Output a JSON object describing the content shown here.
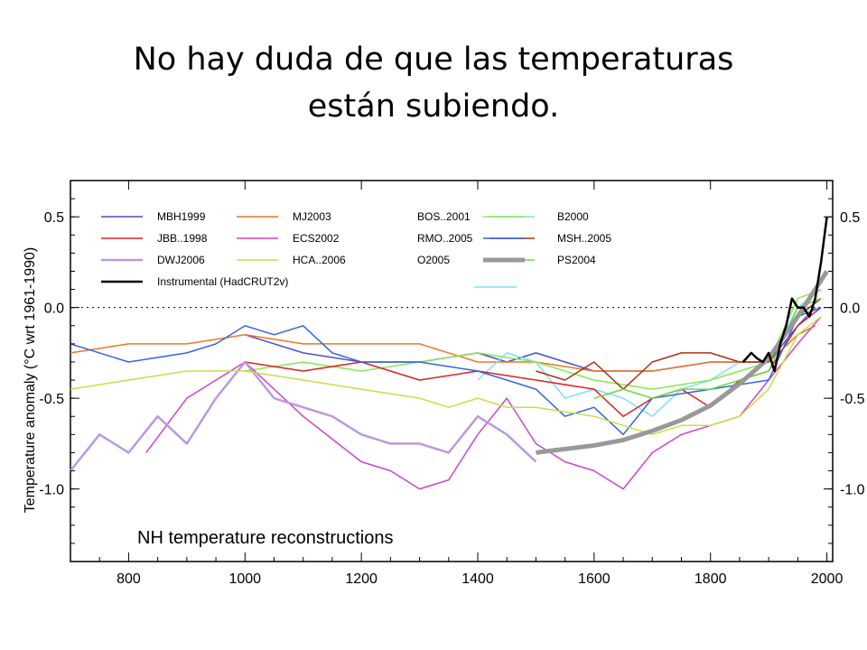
{
  "slide": {
    "title_line1": "No hay duda de que las temperaturas",
    "title_line2": "están subiendo."
  },
  "chart_data": {
    "type": "line",
    "panel_label": "NH temperature reconstructions",
    "xlabel": "",
    "ylabel": "Temperature anomaly (°C wrt 1961-1990)",
    "xlim": [
      700,
      2010
    ],
    "ylim": [
      -1.4,
      0.7
    ],
    "x_ticks": [
      800,
      1000,
      1200,
      1400,
      1600,
      1800,
      2000
    ],
    "y_ticks": [
      0.5,
      0.0,
      -0.5,
      -1.0
    ],
    "y_tick_labels": [
      "0.5",
      "0.0",
      "-0.5",
      "-1.0"
    ],
    "zero_line": true,
    "legend_placement": "top-left, three columns",
    "series": [
      {
        "name": "MBH1999",
        "color": "#4d4dcc",
        "width": 1.5,
        "x": [
          1000,
          1100,
          1200,
          1300,
          1400,
          1450,
          1500,
          1600,
          1700,
          1800,
          1850,
          1900,
          1950,
          1980
        ],
        "y": [
          -0.15,
          -0.25,
          -0.3,
          -0.3,
          -0.25,
          -0.3,
          -0.25,
          -0.35,
          -0.35,
          -0.3,
          -0.3,
          -0.3,
          -0.1,
          0.0
        ]
      },
      {
        "name": "MJ2003",
        "color": "#ee7722",
        "width": 1.5,
        "x": [
          700,
          800,
          900,
          1000,
          1100,
          1200,
          1300,
          1400,
          1500,
          1600,
          1700,
          1800,
          1900,
          1950,
          1980
        ],
        "y": [
          -0.25,
          -0.2,
          -0.2,
          -0.15,
          -0.2,
          -0.2,
          -0.2,
          -0.3,
          -0.3,
          -0.35,
          -0.35,
          -0.3,
          -0.3,
          -0.15,
          -0.1
        ]
      },
      {
        "name": "BOS..2001",
        "color": "#7fe0f0",
        "width": 1.5,
        "x": [
          1400,
          1450,
          1500,
          1550,
          1600,
          1650,
          1700,
          1750,
          1800,
          1850,
          1900,
          1950,
          1990
        ],
        "y": [
          -0.4,
          -0.25,
          -0.3,
          -0.5,
          -0.45,
          -0.5,
          -0.6,
          -0.45,
          -0.4,
          -0.3,
          -0.3,
          0.0,
          0.1
        ]
      },
      {
        "name": "B2000",
        "color": "#88e855",
        "width": 1.5,
        "x": [
          1000,
          1100,
          1200,
          1300,
          1400,
          1500,
          1600,
          1700,
          1800,
          1850,
          1900,
          1950,
          1990
        ],
        "y": [
          -0.35,
          -0.3,
          -0.35,
          -0.3,
          -0.25,
          -0.3,
          -0.4,
          -0.45,
          -0.4,
          -0.35,
          -0.3,
          0.05,
          0.1
        ]
      },
      {
        "name": "JBB..1998",
        "color": "#dd2222",
        "width": 1.5,
        "x": [
          1000,
          1100,
          1200,
          1300,
          1400,
          1500,
          1600,
          1650,
          1700,
          1750,
          1800,
          1850,
          1900,
          1950,
          1990
        ],
        "y": [
          -0.3,
          -0.35,
          -0.3,
          -0.4,
          -0.35,
          -0.4,
          -0.45,
          -0.6,
          -0.5,
          -0.45,
          -0.55,
          -0.4,
          -0.35,
          -0.1,
          0.0
        ]
      },
      {
        "name": "ECS2002",
        "color": "#cc44cc",
        "width": 1.5,
        "x": [
          830,
          900,
          1000,
          1100,
          1200,
          1250,
          1300,
          1350,
          1400,
          1450,
          1500,
          1550,
          1600,
          1650,
          1700,
          1750,
          1800,
          1850,
          1900,
          1950,
          1990
        ],
        "y": [
          -0.8,
          -0.5,
          -0.3,
          -0.6,
          -0.85,
          -0.9,
          -1.0,
          -0.95,
          -0.7,
          -0.5,
          -0.75,
          -0.85,
          -0.9,
          -1.0,
          -0.8,
          -0.7,
          -0.65,
          -0.6,
          -0.4,
          -0.2,
          -0.05
        ]
      },
      {
        "name": "RMO..2005",
        "color": "#aa3311",
        "width": 1.5,
        "x": [
          1500,
          1550,
          1600,
          1650,
          1700,
          1750,
          1800,
          1850,
          1900,
          1950,
          1990
        ],
        "y": [
          -0.35,
          -0.4,
          -0.3,
          -0.45,
          -0.3,
          -0.25,
          -0.25,
          -0.3,
          -0.3,
          -0.05,
          0.05
        ]
      },
      {
        "name": "MSH..2005",
        "color": "#3366dd",
        "width": 1.5,
        "x": [
          700,
          800,
          900,
          950,
          1000,
          1050,
          1100,
          1150,
          1200,
          1300,
          1400,
          1450,
          1500,
          1550,
          1600,
          1650,
          1700,
          1800,
          1900,
          1950,
          1990
        ],
        "y": [
          -0.2,
          -0.3,
          -0.25,
          -0.2,
          -0.1,
          -0.15,
          -0.1,
          -0.25,
          -0.3,
          -0.3,
          -0.35,
          -0.4,
          -0.45,
          -0.6,
          -0.55,
          -0.7,
          -0.5,
          -0.45,
          -0.4,
          -0.05,
          0.0
        ]
      },
      {
        "name": "DWJ2006",
        "color": "#bb99dd",
        "width": 2.5,
        "x": [
          700,
          750,
          800,
          850,
          900,
          950,
          1000,
          1050,
          1100,
          1150,
          1200,
          1250,
          1300,
          1350,
          1400,
          1450,
          1500
        ],
        "y": [
          -0.9,
          -0.7,
          -0.8,
          -0.6,
          -0.75,
          -0.5,
          -0.3,
          -0.5,
          -0.55,
          -0.6,
          -0.7,
          -0.75,
          -0.75,
          -0.8,
          -0.6,
          -0.7,
          -0.85
        ]
      },
      {
        "name": "HCA..2006",
        "color": "#ccdd44",
        "width": 1.5,
        "x": [
          700,
          800,
          900,
          1000,
          1100,
          1200,
          1300,
          1350,
          1400,
          1450,
          1500,
          1600,
          1650,
          1700,
          1750,
          1800,
          1850,
          1900,
          1950,
          1990
        ],
        "y": [
          -0.45,
          -0.4,
          -0.35,
          -0.35,
          -0.4,
          -0.45,
          -0.5,
          -0.55,
          -0.5,
          -0.55,
          -0.55,
          -0.6,
          -0.65,
          -0.7,
          -0.65,
          -0.65,
          -0.6,
          -0.45,
          -0.15,
          -0.05
        ]
      },
      {
        "name": "O2005",
        "color": "#66dd44",
        "width": 1.5,
        "x": [
          1600,
          1650,
          1700,
          1750,
          1800,
          1850,
          1900,
          1950,
          1990
        ],
        "y": [
          -0.5,
          -0.45,
          -0.5,
          -0.45,
          -0.45,
          -0.4,
          -0.35,
          0.0,
          0.05
        ]
      },
      {
        "name": "PS2004",
        "color": "#999999",
        "width": 5,
        "x": [
          1500,
          1550,
          1600,
          1650,
          1700,
          1750,
          1800,
          1850,
          1900,
          1950,
          2000
        ],
        "y": [
          -0.8,
          -0.78,
          -0.76,
          -0.73,
          -0.68,
          -0.62,
          -0.54,
          -0.42,
          -0.28,
          -0.05,
          0.2
        ]
      },
      {
        "name": "Instrumental (HadCRUT2v)",
        "color": "#000000",
        "width": 2.5,
        "x": [
          1856,
          1870,
          1880,
          1890,
          1900,
          1910,
          1920,
          1930,
          1940,
          1950,
          1960,
          1970,
          1980,
          1990,
          2000
        ],
        "y": [
          -0.3,
          -0.25,
          -0.28,
          -0.3,
          -0.25,
          -0.35,
          -0.2,
          -0.1,
          0.05,
          0.0,
          0.0,
          -0.05,
          0.05,
          0.25,
          0.5
        ]
      }
    ]
  }
}
